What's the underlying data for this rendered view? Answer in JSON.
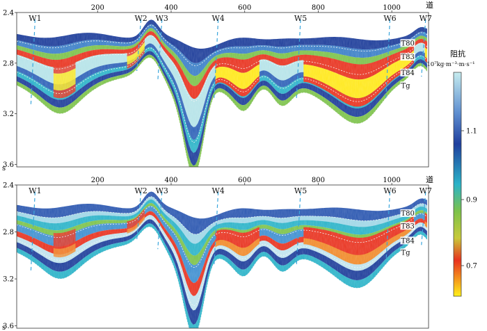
{
  "x_axis": {
    "unit_label": "道",
    "ticks": [
      "200",
      "400",
      "600",
      "800",
      "1000"
    ],
    "tick_values": [
      200,
      400,
      600,
      800,
      1000
    ],
    "range": [
      -20,
      1100
    ]
  },
  "y_axis": {
    "unit_label": "s",
    "ticks": [
      "2.4",
      "2.8",
      "3.2",
      "3.6"
    ],
    "tick_values": [
      2.4,
      2.8,
      3.2,
      3.6
    ],
    "range": [
      2.4,
      3.62
    ]
  },
  "wells": [
    {
      "name": "W1",
      "trace": 30
    },
    {
      "name": "W2",
      "trace": 318
    },
    {
      "name": "W3",
      "trace": 375
    },
    {
      "name": "W4",
      "trace": 528
    },
    {
      "name": "W5",
      "trace": 752
    },
    {
      "name": "W6",
      "trace": 995
    },
    {
      "name": "W7",
      "trace": 1092
    }
  ],
  "horizons": [
    {
      "name": "T80"
    },
    {
      "name": "T83"
    },
    {
      "name": "T84"
    },
    {
      "name": "Tg"
    }
  ],
  "panels": [
    {
      "id": "upper",
      "description": "smoothed impedance section"
    },
    {
      "id": "lower",
      "description": "high-resolution impedance section"
    }
  ],
  "colorbar": {
    "title": "阻抗",
    "unit": "10⁷kg·m⁻³·m·s⁻¹",
    "ticks": [
      "1.1",
      "0.9",
      "0.7"
    ],
    "colors": [
      "#bfe8ec",
      "#2a4fa8",
      "#2eb4c8",
      "#7cc24a",
      "#e83222",
      "#ffe81a"
    ]
  }
}
